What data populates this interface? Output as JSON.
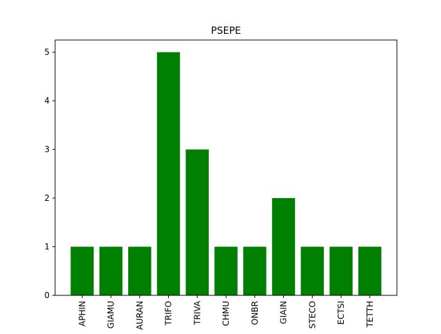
{
  "chart_data": {
    "type": "bar",
    "title": "PSEPE",
    "xlabel": "",
    "ylabel": "",
    "categories": [
      "APHIN",
      "GIAMU",
      "AURAN",
      "TRIFO",
      "TRIVA",
      "CHMU",
      "ONBR",
      "GIAIN",
      "STECO",
      "ECTSI",
      "TETTH"
    ],
    "values": [
      1,
      1,
      1,
      5,
      3,
      1,
      1,
      2,
      1,
      1,
      1
    ],
    "ylim": [
      0,
      5.25
    ],
    "yticks": [
      0,
      1,
      2,
      3,
      4,
      5
    ],
    "grid": false,
    "legend": "none",
    "bar_color": "#008000"
  }
}
